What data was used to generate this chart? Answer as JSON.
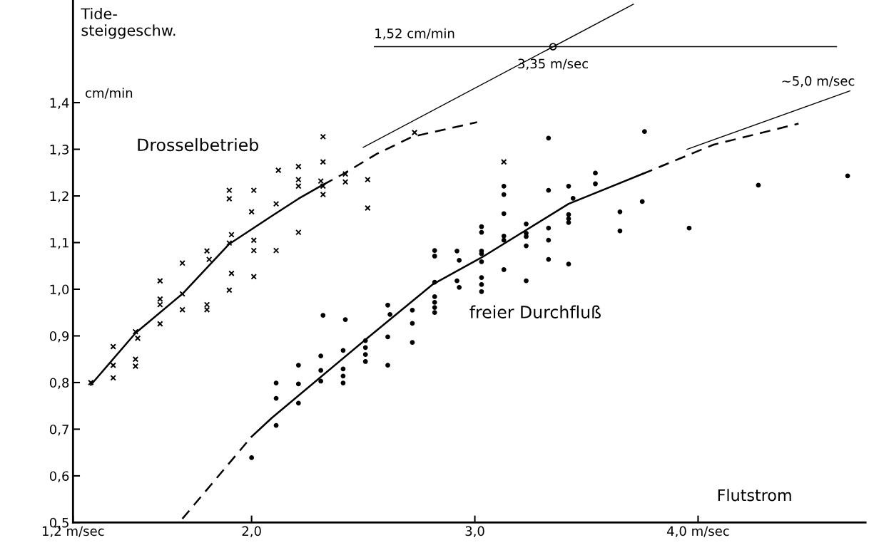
{
  "chart_data": {
    "type": "scatter",
    "ylabel": "Tide-\nsteiggeschw.",
    "xlabel": "Flutstrom",
    "xlim": [
      1.2,
      4.75
    ],
    "ylim": [
      0.5,
      1.62
    ],
    "xticks": [
      {
        "value": 1.2,
        "label": "1,2 m/sec"
      },
      {
        "value": 2.0,
        "label": "2,0"
      },
      {
        "value": 3.0,
        "label": "3,0"
      },
      {
        "value": 4.0,
        "label": "4,0 m/sec"
      }
    ],
    "yticks": [
      {
        "value": 0.5,
        "label": "0,5"
      },
      {
        "value": 0.6,
        "label": "0,6"
      },
      {
        "value": 0.7,
        "label": "0,7"
      },
      {
        "value": 0.8,
        "label": "0,8"
      },
      {
        "value": 0.9,
        "label": "0,9"
      },
      {
        "value": 1.0,
        "label": "1,0"
      },
      {
        "value": 1.1,
        "label": "1,1"
      },
      {
        "value": 1.2,
        "label": "1,2"
      },
      {
        "value": 1.3,
        "label": "1,3"
      },
      {
        "value": 1.4,
        "label": "1,4"
      }
    ],
    "grid": false,
    "series": [
      {
        "name": "Drosselbetrieb",
        "marker": "cross",
        "color": "#000000",
        "x": [
          1.28,
          1.38,
          1.38,
          1.38,
          1.48,
          1.49,
          1.48,
          1.48,
          1.59,
          1.59,
          1.59,
          1.59,
          1.69,
          1.69,
          1.69,
          1.8,
          1.81,
          1.8,
          1.8,
          1.9,
          1.9,
          1.91,
          1.9,
          1.91,
          1.9,
          2.01,
          2.0,
          2.01,
          2.01,
          2.01,
          2.12,
          2.11,
          2.11,
          2.21,
          2.21,
          2.21,
          2.21,
          2.32,
          2.32,
          2.31,
          2.32,
          2.32,
          2.42,
          2.42,
          2.52,
          2.52,
          2.73,
          3.13
        ],
        "values": [
          0.8,
          0.877,
          0.837,
          0.81,
          0.909,
          0.895,
          0.85,
          0.835,
          0.926,
          1.018,
          0.979,
          0.967,
          1.056,
          0.99,
          0.956,
          1.082,
          1.064,
          0.967,
          0.956,
          1.212,
          1.194,
          1.117,
          1.099,
          1.034,
          0.998,
          1.212,
          1.166,
          1.105,
          1.083,
          1.027,
          1.255,
          1.183,
          1.083,
          1.263,
          1.235,
          1.221,
          1.122,
          1.327,
          1.273,
          1.232,
          1.221,
          1.203,
          1.247,
          1.23,
          1.235,
          1.174,
          1.336,
          1.273
        ]
      },
      {
        "name": "freier Durchfluß",
        "marker": "circle",
        "color": "#000000",
        "x": [
          2.11,
          2.11,
          2.11,
          2.0,
          2.21,
          2.21,
          2.21,
          2.31,
          2.31,
          2.31,
          2.32,
          2.42,
          2.41,
          2.41,
          2.41,
          2.41,
          2.51,
          2.51,
          2.51,
          2.51,
          2.61,
          2.62,
          2.61,
          2.61,
          2.72,
          2.72,
          2.72,
          2.82,
          2.82,
          2.82,
          2.82,
          2.82,
          2.82,
          2.82,
          2.92,
          2.93,
          2.92,
          2.93,
          3.03,
          3.03,
          3.03,
          3.03,
          3.03,
          3.03,
          3.03,
          3.03,
          3.13,
          3.13,
          3.13,
          3.13,
          3.13,
          3.13,
          3.23,
          3.23,
          3.23,
          3.23,
          3.23,
          3.33,
          3.33,
          3.33,
          3.33,
          3.33,
          3.42,
          3.44,
          3.42,
          3.42,
          3.42,
          3.42,
          3.54,
          3.54,
          3.65,
          3.65,
          3.75,
          3.76,
          3.96,
          4.27,
          4.67
        ],
        "values": [
          0.799,
          0.766,
          0.708,
          0.639,
          0.837,
          0.797,
          0.756,
          0.857,
          0.826,
          0.803,
          0.944,
          0.935,
          0.869,
          0.829,
          0.814,
          0.799,
          0.89,
          0.875,
          0.86,
          0.845,
          0.966,
          0.946,
          0.898,
          0.837,
          0.955,
          0.927,
          0.886,
          1.083,
          1.071,
          1.015,
          0.984,
          0.972,
          0.961,
          0.95,
          1.082,
          1.062,
          1.018,
          1.004,
          1.134,
          1.122,
          1.082,
          1.076,
          1.059,
          1.025,
          1.01,
          0.995,
          1.221,
          1.203,
          1.162,
          1.114,
          1.105,
          1.042,
          1.14,
          1.12,
          1.113,
          1.093,
          1.018,
          1.212,
          1.131,
          1.105,
          1.064,
          1.324,
          1.221,
          1.195,
          1.16,
          1.151,
          1.143,
          1.054,
          1.249,
          1.226,
          1.166,
          1.125,
          1.188,
          1.338,
          1.131,
          1.223,
          1.243
        ]
      },
      {
        "type": "line",
        "line_style": "solid",
        "color": "#000000",
        "x": [
          1.28,
          1.48,
          1.69,
          1.9,
          2.1,
          2.21,
          2.32
        ],
        "values": [
          0.795,
          0.906,
          0.99,
          1.097,
          1.16,
          1.194,
          1.224
        ]
      },
      {
        "type": "line",
        "line_style": "dashed",
        "color": "#000000",
        "x": [
          2.32,
          2.41,
          2.56,
          2.72,
          3.01
        ],
        "values": [
          1.224,
          1.247,
          1.29,
          1.327,
          1.358
        ]
      },
      {
        "type": "line",
        "line_style": "dashed",
        "color": "#000000",
        "x": [
          1.69,
          2.0
        ],
        "values": [
          0.508,
          0.684
        ]
      },
      {
        "type": "line",
        "line_style": "solid",
        "color": "#000000",
        "x": [
          2.0,
          2.09,
          2.51,
          2.81,
          3.03,
          3.42,
          3.75
        ],
        "values": [
          0.684,
          0.724,
          0.892,
          1.01,
          1.068,
          1.183,
          1.247
        ]
      },
      {
        "type": "line",
        "line_style": "dashed",
        "color": "#000000",
        "x": [
          3.75,
          4.07,
          4.45
        ],
        "values": [
          1.247,
          1.31,
          1.355
        ]
      },
      {
        "type": "line",
        "line_style": "solid",
        "color": "#000000",
        "x": [
          2.5,
          3.71
        ],
        "values": [
          1.304,
          1.611
        ]
      },
      {
        "type": "line",
        "line_style": "solid",
        "color": "#000000",
        "x": [
          2.55,
          4.62
        ],
        "values": [
          1.52,
          1.52
        ]
      },
      {
        "type": "line",
        "line_style": "solid",
        "color": "#000000",
        "x": [
          3.95,
          4.68
        ],
        "values": [
          1.3,
          1.425
        ]
      },
      {
        "type": "scatter",
        "marker": "circle",
        "color": "#000000",
        "x": [
          3.35
        ],
        "values": [
          1.52
        ]
      }
    ],
    "annotations": [
      {
        "text": "1,52 cm/min",
        "x": 2.73,
        "y": 1.52
      },
      {
        "text": "3,35 m/sec",
        "x": 3.35,
        "y": 1.52
      },
      "~5,0 m/sec",
      "cm/min"
    ]
  }
}
